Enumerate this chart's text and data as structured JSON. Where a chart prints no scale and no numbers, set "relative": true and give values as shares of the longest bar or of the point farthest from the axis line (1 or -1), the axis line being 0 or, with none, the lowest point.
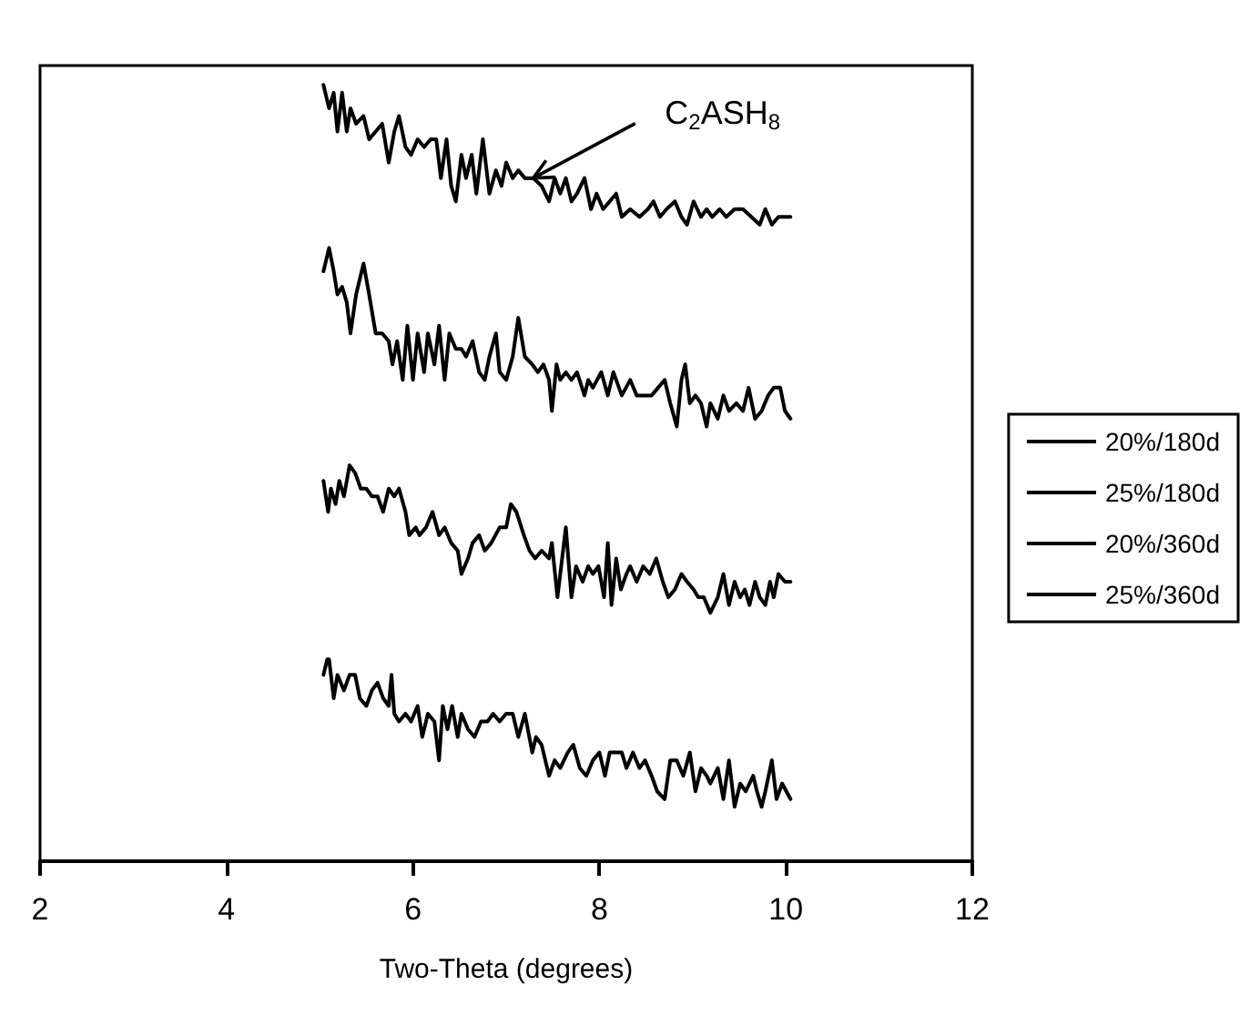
{
  "chart_data": {
    "type": "line",
    "relative": true,
    "xlabel": "Two-Theta (degrees)",
    "xlim": [
      2,
      12
    ],
    "xticks": [
      2,
      4,
      6,
      8,
      10,
      12
    ],
    "grid": false,
    "legend": "right",
    "marker": "none",
    "line_style": "solid",
    "tick_labels": "x",
    "annotations": [
      {
        "text": "C$_{2}$ASH$_{8}$",
        "x": 7.29,
        "y": 0.88
      }
    ],
    "series": [
      {
        "name": "20%/180d",
        "color": "#000000",
        "x": [
          5.04,
          5.1,
          5.15,
          5.19,
          5.24,
          5.29,
          5.33,
          5.39,
          5.47,
          5.53,
          5.6,
          5.67,
          5.74,
          5.8,
          5.85,
          5.92,
          5.98,
          6.05,
          6.12,
          6.19,
          6.25,
          6.3,
          6.36,
          6.41,
          6.46,
          6.52,
          6.57,
          6.63,
          6.68,
          6.75,
          6.82,
          6.89,
          6.95,
          7.0,
          7.07,
          7.13,
          7.2,
          7.29,
          7.38,
          7.46,
          7.52,
          7.58,
          7.64,
          7.7,
          7.76,
          7.84,
          7.91,
          7.97,
          8.04,
          8.11,
          8.18,
          8.24,
          8.33,
          8.43,
          8.52,
          8.58,
          8.65,
          8.72,
          8.81,
          8.88,
          8.94,
          9.01,
          9.09,
          9.15,
          9.21,
          9.29,
          9.36,
          9.45,
          9.54,
          9.63,
          9.72,
          9.78,
          9.85,
          9.92,
          9.99,
          10.05
        ],
        "values": [
          1.0,
          0.97,
          0.99,
          0.94,
          0.99,
          0.94,
          0.97,
          0.95,
          0.96,
          0.93,
          0.94,
          0.95,
          0.9,
          0.94,
          0.96,
          0.92,
          0.91,
          0.93,
          0.92,
          0.93,
          0.93,
          0.88,
          0.93,
          0.87,
          0.85,
          0.91,
          0.88,
          0.91,
          0.86,
          0.93,
          0.86,
          0.89,
          0.87,
          0.9,
          0.88,
          0.89,
          0.88,
          0.88,
          0.87,
          0.85,
          0.88,
          0.86,
          0.88,
          0.85,
          0.86,
          0.88,
          0.84,
          0.86,
          0.84,
          0.85,
          0.86,
          0.83,
          0.84,
          0.83,
          0.84,
          0.85,
          0.83,
          0.84,
          0.85,
          0.83,
          0.82,
          0.85,
          0.83,
          0.84,
          0.83,
          0.84,
          0.83,
          0.84,
          0.84,
          0.83,
          0.82,
          0.84,
          0.82,
          0.83,
          0.83,
          0.83
        ]
      },
      {
        "name": "25%/180d",
        "color": "#000000",
        "x": [
          5.04,
          5.1,
          5.15,
          5.19,
          5.24,
          5.29,
          5.33,
          5.39,
          5.47,
          5.53,
          5.6,
          5.67,
          5.74,
          5.78,
          5.83,
          5.89,
          5.94,
          6.0,
          6.05,
          6.12,
          6.16,
          6.23,
          6.28,
          6.34,
          6.39,
          6.46,
          6.52,
          6.57,
          6.64,
          6.71,
          6.77,
          6.82,
          6.89,
          6.93,
          7.0,
          7.07,
          7.13,
          7.2,
          7.28,
          7.34,
          7.4,
          7.46,
          7.49,
          7.54,
          7.58,
          7.64,
          7.7,
          7.76,
          7.84,
          7.88,
          7.93,
          8.02,
          8.09,
          8.15,
          8.24,
          8.33,
          8.4,
          8.49,
          8.56,
          8.63,
          8.7,
          8.76,
          8.83,
          8.88,
          8.92,
          8.97,
          9.03,
          9.09,
          9.15,
          9.19,
          9.27,
          9.33,
          9.39,
          9.47,
          9.54,
          9.6,
          9.67,
          9.74,
          9.81,
          9.87,
          9.94,
          9.99,
          10.05
        ],
        "values": [
          0.76,
          0.79,
          0.76,
          0.73,
          0.74,
          0.72,
          0.68,
          0.73,
          0.77,
          0.73,
          0.68,
          0.68,
          0.67,
          0.64,
          0.67,
          0.62,
          0.69,
          0.62,
          0.68,
          0.63,
          0.68,
          0.64,
          0.69,
          0.62,
          0.68,
          0.66,
          0.66,
          0.65,
          0.67,
          0.63,
          0.62,
          0.65,
          0.68,
          0.63,
          0.62,
          0.65,
          0.7,
          0.65,
          0.64,
          0.63,
          0.64,
          0.62,
          0.58,
          0.64,
          0.62,
          0.63,
          0.62,
          0.63,
          0.6,
          0.62,
          0.61,
          0.63,
          0.6,
          0.63,
          0.6,
          0.62,
          0.6,
          0.6,
          0.6,
          0.61,
          0.62,
          0.59,
          0.56,
          0.62,
          0.64,
          0.59,
          0.6,
          0.59,
          0.56,
          0.59,
          0.57,
          0.6,
          0.58,
          0.59,
          0.58,
          0.61,
          0.57,
          0.58,
          0.6,
          0.61,
          0.61,
          0.58,
          0.57
        ]
      },
      {
        "name": "20%/360d",
        "color": "#000000",
        "x": [
          5.04,
          5.09,
          5.12,
          5.17,
          5.21,
          5.26,
          5.32,
          5.38,
          5.44,
          5.5,
          5.56,
          5.62,
          5.68,
          5.74,
          5.8,
          5.85,
          5.92,
          5.96,
          6.03,
          6.07,
          6.14,
          6.21,
          6.28,
          6.34,
          6.41,
          6.48,
          6.52,
          6.59,
          6.64,
          6.71,
          6.77,
          6.84,
          6.93,
          7.0,
          7.05,
          7.11,
          7.19,
          7.25,
          7.31,
          7.38,
          7.46,
          7.49,
          7.55,
          7.59,
          7.64,
          7.7,
          7.75,
          7.82,
          7.88,
          7.93,
          7.99,
          8.05,
          8.09,
          8.13,
          8.18,
          8.23,
          8.29,
          8.33,
          8.4,
          8.47,
          8.54,
          8.61,
          8.68,
          8.74,
          8.81,
          8.88,
          8.94,
          9.01,
          9.06,
          9.12,
          9.19,
          9.27,
          9.33,
          9.39,
          9.45,
          9.51,
          9.56,
          9.61,
          9.67,
          9.72,
          9.78,
          9.83,
          9.87,
          9.92,
          9.99,
          10.05
        ],
        "values": [
          0.49,
          0.45,
          0.48,
          0.46,
          0.49,
          0.47,
          0.51,
          0.5,
          0.48,
          0.48,
          0.47,
          0.47,
          0.45,
          0.48,
          0.47,
          0.48,
          0.45,
          0.42,
          0.43,
          0.42,
          0.43,
          0.45,
          0.42,
          0.43,
          0.41,
          0.4,
          0.37,
          0.39,
          0.41,
          0.42,
          0.4,
          0.41,
          0.43,
          0.43,
          0.46,
          0.45,
          0.42,
          0.4,
          0.39,
          0.4,
          0.39,
          0.41,
          0.34,
          0.38,
          0.43,
          0.34,
          0.38,
          0.36,
          0.38,
          0.37,
          0.38,
          0.34,
          0.41,
          0.33,
          0.39,
          0.35,
          0.37,
          0.38,
          0.36,
          0.38,
          0.37,
          0.39,
          0.36,
          0.34,
          0.35,
          0.37,
          0.36,
          0.35,
          0.34,
          0.34,
          0.32,
          0.34,
          0.37,
          0.33,
          0.36,
          0.34,
          0.35,
          0.33,
          0.36,
          0.34,
          0.33,
          0.36,
          0.34,
          0.37,
          0.36,
          0.36
        ]
      },
      {
        "name": "25%/360d",
        "color": "#000000",
        "x": [
          5.04,
          5.08,
          5.1,
          5.15,
          5.19,
          5.26,
          5.32,
          5.38,
          5.43,
          5.5,
          5.56,
          5.62,
          5.68,
          5.74,
          5.77,
          5.8,
          5.85,
          5.92,
          5.98,
          6.05,
          6.1,
          6.16,
          6.23,
          6.28,
          6.32,
          6.37,
          6.42,
          6.48,
          6.52,
          6.59,
          6.66,
          6.73,
          6.8,
          6.86,
          6.93,
          7.0,
          7.07,
          7.13,
          7.2,
          7.28,
          7.32,
          7.38,
          7.46,
          7.52,
          7.58,
          7.66,
          7.72,
          7.79,
          7.86,
          7.93,
          8.0,
          8.06,
          8.11,
          8.18,
          8.24,
          8.29,
          8.36,
          8.43,
          8.49,
          8.56,
          8.62,
          8.7,
          8.76,
          8.83,
          8.9,
          8.97,
          9.03,
          9.09,
          9.15,
          9.19,
          9.27,
          9.33,
          9.39,
          9.45,
          9.51,
          9.57,
          9.65,
          9.69,
          9.74,
          9.78,
          9.85,
          9.9,
          9.96,
          10.05
        ],
        "values": [
          0.24,
          0.26,
          0.26,
          0.21,
          0.24,
          0.22,
          0.24,
          0.24,
          0.21,
          0.2,
          0.22,
          0.23,
          0.21,
          0.2,
          0.24,
          0.19,
          0.18,
          0.19,
          0.18,
          0.2,
          0.16,
          0.19,
          0.18,
          0.13,
          0.2,
          0.17,
          0.2,
          0.16,
          0.19,
          0.17,
          0.16,
          0.18,
          0.18,
          0.19,
          0.18,
          0.19,
          0.19,
          0.16,
          0.19,
          0.14,
          0.16,
          0.15,
          0.11,
          0.13,
          0.12,
          0.14,
          0.15,
          0.12,
          0.11,
          0.13,
          0.14,
          0.11,
          0.14,
          0.14,
          0.14,
          0.12,
          0.14,
          0.12,
          0.13,
          0.11,
          0.09,
          0.08,
          0.13,
          0.13,
          0.11,
          0.14,
          0.09,
          0.12,
          0.11,
          0.1,
          0.12,
          0.08,
          0.13,
          0.07,
          0.1,
          0.09,
          0.11,
          0.09,
          0.07,
          0.09,
          0.13,
          0.08,
          0.1,
          0.08
        ]
      }
    ]
  }
}
